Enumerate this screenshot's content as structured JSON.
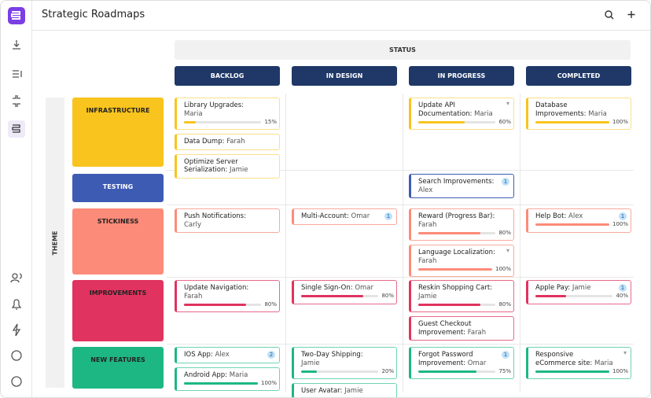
{
  "header": {
    "title": "Strategic Roadmaps"
  },
  "status_label": "STATUS",
  "theme_label": "THEME",
  "columns": [
    "BACKLOG",
    "IN DESIGN",
    "IN PROGRESS",
    "COMPLETED"
  ],
  "rows": [
    {
      "label": "INFRASTRUCTURE",
      "cells": [
        [
          {
            "title": "Library Upgrades:",
            "owner": "Maria",
            "progress": 15,
            "progress_label": "15%"
          },
          {
            "title": "Data Dump:",
            "owner": "Farah"
          },
          {
            "title": "Optimize Server Serialization:",
            "owner": "Jamie"
          }
        ],
        [],
        [
          {
            "title": "Update API Documentation:",
            "owner": "Maria",
            "progress": 60,
            "progress_label": "60%",
            "menu": "▾"
          }
        ],
        [
          {
            "title": "Database Improvements:",
            "owner": "Maria",
            "progress": 100,
            "progress_label": "100%"
          }
        ]
      ]
    },
    {
      "label": "TESTING",
      "cells": [
        [],
        [],
        [
          {
            "title": "Search Improvements:",
            "owner": "Alex",
            "badge": 1
          }
        ],
        []
      ]
    },
    {
      "label": "STICKINESS",
      "cells": [
        [
          {
            "title": "Push Notifications:",
            "owner": "Carly"
          }
        ],
        [
          {
            "title": "Multi-Account:",
            "owner": "Omar",
            "badge": 1
          }
        ],
        [
          {
            "title": "Reward (Progress Bar):",
            "owner": "Farah",
            "progress": 80,
            "progress_label": "80%"
          },
          {
            "title": "Language Localization:",
            "owner": "Farah",
            "progress": 100,
            "progress_label": "100%",
            "menu": "▾"
          }
        ],
        [
          {
            "title": "Help Bot:",
            "owner": "Alex",
            "badge": 1,
            "progress": 100,
            "progress_label": "100%"
          }
        ]
      ]
    },
    {
      "label": "IMPROVEMENTS",
      "cells": [
        [
          {
            "title": "Update Navigation:",
            "owner": "Farah",
            "progress": 80,
            "progress_label": "80%"
          }
        ],
        [
          {
            "title": "Single Sign-On:",
            "owner": "Omar",
            "progress": 80,
            "progress_label": "80%"
          }
        ],
        [
          {
            "title": "Reskin Shopping Cart:",
            "owner": "Jamie",
            "progress": 80,
            "progress_label": "80%"
          },
          {
            "title": "Guest Checkout Improvement:",
            "owner": "Farah"
          }
        ],
        [
          {
            "title": "Apple Pay:",
            "owner": "Jamie",
            "badge": 1,
            "progress": 40,
            "progress_label": "40%"
          }
        ]
      ]
    },
    {
      "label": "NEW FEATURES",
      "cells": [
        [
          {
            "title": "IOS App:",
            "owner": "Alex",
            "badge": 2
          },
          {
            "title": "Android App:",
            "owner": "Maria",
            "progress": 100,
            "progress_label": "100%"
          }
        ],
        [
          {
            "title": "Two-Day Shipping:",
            "owner": "Jamie",
            "progress": 20,
            "progress_label": "20%"
          },
          {
            "title": "User Avatar:",
            "owner": "Jamie"
          }
        ],
        [
          {
            "title": "Forgot Password Improvement:",
            "owner": "Omar",
            "badge": 1,
            "progress": 75,
            "progress_label": "75%"
          }
        ],
        [
          {
            "title": "Responsive eCommerce site:",
            "owner": "Maria",
            "progress": 100,
            "progress_label": "100%",
            "menu": "▾"
          }
        ]
      ]
    }
  ]
}
